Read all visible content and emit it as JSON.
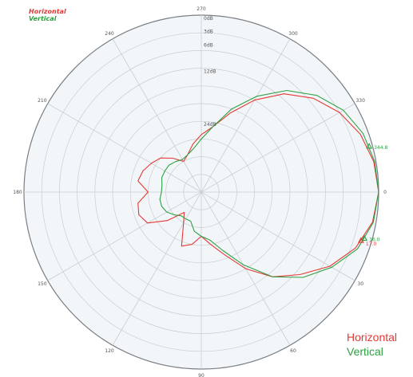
{
  "colors": {
    "horizontal": "#e53935",
    "vertical": "#2ea043",
    "plot_bg": "#f2f6f9",
    "grid": "#c9ced3",
    "outer_ring": "#7a7f85"
  },
  "legend_top": {
    "horizontal": "Horizontal",
    "vertical": "Vertical"
  },
  "legend_bottom": {
    "horizontal": "Horizontal",
    "vertical": "Vertical"
  },
  "chart_data": {
    "type": "polar-line",
    "title": "",
    "angle_unit": "deg",
    "angle_ticks": [
      "0",
      "30",
      "60",
      "90",
      "120",
      "150",
      "180",
      "210",
      "240",
      "270",
      "300",
      "330"
    ],
    "radial_labels": [
      "0dB",
      "3dB",
      "6dB",
      "12dB",
      "24dB"
    ],
    "radial_db": [
      0,
      3,
      6,
      12,
      24
    ],
    "r_max_db": 40,
    "grid": true,
    "legend_placement": "top-left",
    "markers": [
      {
        "label": "344.8",
        "angle": 344.8,
        "series": "vertical"
      },
      {
        "label": "16.0",
        "angle": 16,
        "series": "vertical"
      },
      {
        "label": "17.0",
        "angle": 17,
        "series": "horizontal"
      }
    ],
    "series": [
      {
        "name": "Horizontal",
        "angles": [
          0,
          10,
          20,
          30,
          40,
          50,
          60,
          70,
          80,
          90,
          100,
          110,
          120,
          130,
          140,
          150,
          160,
          170,
          180,
          190,
          200,
          210,
          220,
          230,
          240,
          250,
          260,
          270,
          280,
          290,
          300,
          310,
          320,
          330,
          340,
          350,
          360
        ],
        "values_db": [
          0,
          0.8,
          3,
          6.5,
          11,
          15,
          20,
          25,
          28,
          30,
          28,
          27,
          32,
          34,
          30,
          26,
          25,
          25.5,
          28,
          25.5,
          26,
          27,
          28,
          30,
          32,
          31,
          29,
          27,
          25,
          21,
          16,
          11,
          7,
          4,
          1.8,
          0.5,
          0
        ]
      },
      {
        "name": "Vertical",
        "angles": [
          0,
          10,
          20,
          30,
          40,
          50,
          60,
          70,
          80,
          90,
          100,
          110,
          120,
          130,
          140,
          150,
          160,
          170,
          180,
          190,
          200,
          210,
          220,
          230,
          240,
          250,
          260,
          270,
          280,
          290,
          300,
          310,
          320,
          330,
          340,
          350,
          360
        ],
        "values_db": [
          0,
          0.6,
          2.5,
          6,
          10,
          15,
          21,
          26,
          29,
          30,
          31,
          33,
          33,
          33,
          32,
          31,
          30.5,
          30.5,
          31,
          31,
          30.5,
          30.5,
          30.5,
          31,
          31.5,
          31,
          30,
          28,
          25,
          20,
          15,
          10,
          6,
          3,
          1.2,
          0.3,
          0
        ]
      }
    ]
  }
}
